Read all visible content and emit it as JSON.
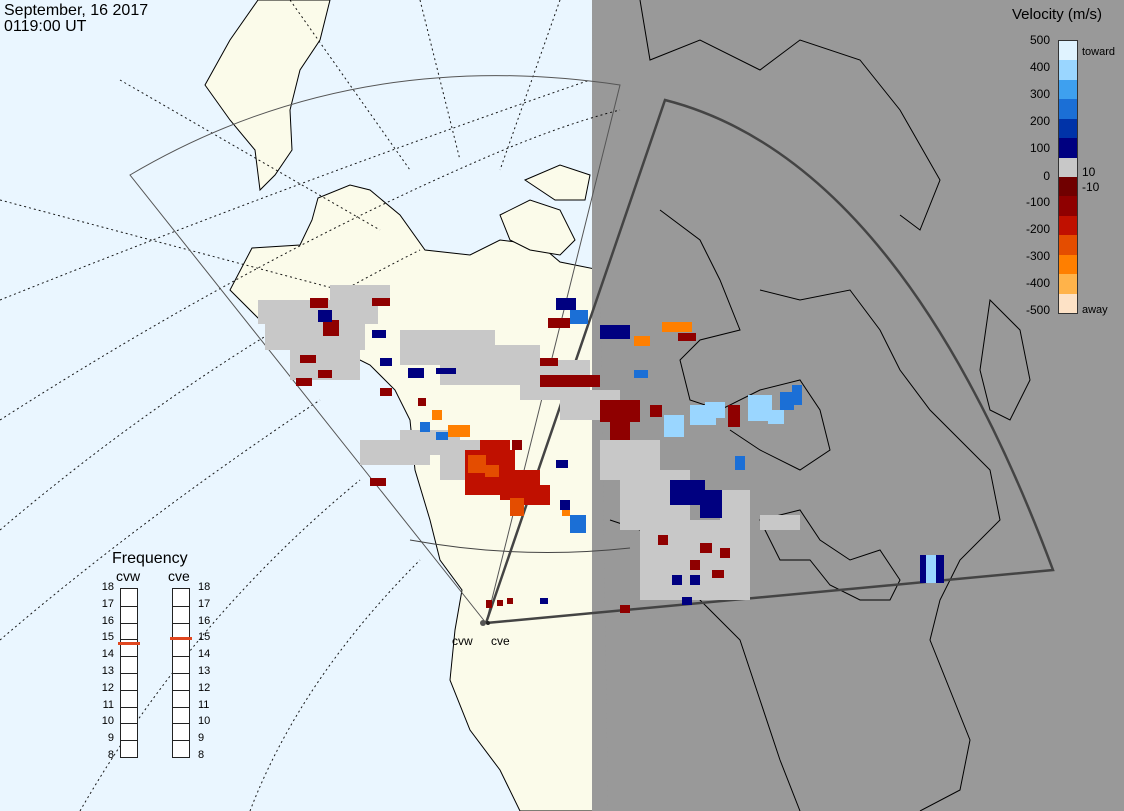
{
  "header": {
    "date": "September, 16 2017",
    "time": "0119:00 UT"
  },
  "colorbar": {
    "title": "Velocity (m/s)",
    "ticks": [
      "500",
      "400",
      "300",
      "200",
      "100",
      "10",
      "0",
      "-10",
      "-100",
      "-200",
      "-300",
      "-400",
      "-500"
    ],
    "toward_label": "toward",
    "away_label": "away",
    "colors": [
      "#fde2c6",
      "#ffb34a",
      "#ff7f00",
      "#e44d00",
      "#c01000",
      "#8f0000",
      "#700000",
      "#c8c8c8",
      "#000080",
      "#0033a8",
      "#1b6fd6",
      "#3ea0ef",
      "#9ad6ff",
      "#e0f3ff"
    ]
  },
  "frequency_panel": {
    "title": "Frequency",
    "radars": [
      {
        "name": "cvw",
        "freq_mhz": 14.8
      },
      {
        "name": "cve",
        "freq_mhz": 15.1
      }
    ],
    "scale": [
      "18",
      "17",
      "16",
      "15",
      "14",
      "13",
      "12",
      "11",
      "10",
      "9",
      "8"
    ],
    "marker_color": "#e0461e"
  },
  "map": {
    "site_labels": {
      "cvw": "cvw",
      "cve": "cve"
    },
    "night_shade_color": "#999999",
    "land_day_color": "#fbfbea",
    "ocean_color": "#eaf6ff"
  }
}
